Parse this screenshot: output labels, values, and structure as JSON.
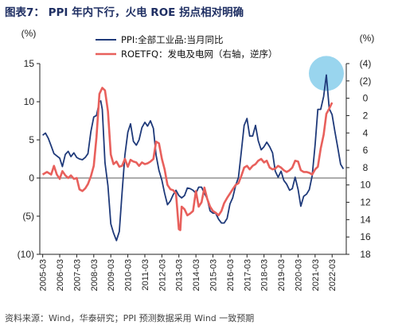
{
  "header": {
    "title": "图表7： PPI 年内下行，火电 ROE 拐点相对明确"
  },
  "footer": {
    "source": "资料来源：Wind，华泰研究；PPI 预测数据采用 Wind 一致预期"
  },
  "chart_data": {
    "type": "line",
    "left_axis": {
      "unit_label": "(%)",
      "ylim": [
        -10,
        15
      ],
      "ticks": [
        15,
        10,
        5,
        0,
        -5,
        -10
      ],
      "tick_labels": [
        "15",
        "10",
        "5",
        "0",
        "(5)",
        "(10)"
      ]
    },
    "right_axis": {
      "unit_label": "(%)",
      "ylim": [
        -4,
        18
      ],
      "inverted": true,
      "ticks": [
        -4,
        -2,
        0,
        2,
        4,
        6,
        8,
        10,
        12,
        14,
        16,
        18
      ],
      "tick_labels": [
        "(4)",
        "(2)",
        "0",
        "2",
        "4",
        "6",
        "8",
        "10",
        "12",
        "14",
        "16",
        "18"
      ]
    },
    "x_axis": {
      "tick_labels": [
        "2005-03",
        "2006-03",
        "2007-03",
        "2008-03",
        "2009-03",
        "2010-03",
        "2011-03",
        "2012-03",
        "2013-03",
        "2014-03",
        "2015-03",
        "2016-03",
        "2017-03",
        "2018-03",
        "2019-03",
        "2020-03",
        "2021-03",
        "2022-03"
      ]
    },
    "highlight": {
      "shape": "circle",
      "color": "#87ceeb",
      "around": "PPI 2021 peak"
    },
    "series": [
      {
        "name": "PPI:全部工业品:当月同比",
        "legend_label": "PPI:全部工业品:当月同比",
        "axis": "left",
        "color": "#1f3a7a",
        "points": [
          [
            2005.17,
            5.6
          ],
          [
            2005.33,
            5.9
          ],
          [
            2005.5,
            5.2
          ],
          [
            2005.67,
            4.2
          ],
          [
            2005.83,
            3.2
          ],
          [
            2006.0,
            2.9
          ],
          [
            2006.17,
            2.6
          ],
          [
            2006.33,
            1.5
          ],
          [
            2006.5,
            3.1
          ],
          [
            2006.67,
            3.5
          ],
          [
            2006.83,
            2.8
          ],
          [
            2007.0,
            3.3
          ],
          [
            2007.17,
            2.7
          ],
          [
            2007.33,
            2.5
          ],
          [
            2007.5,
            2.4
          ],
          [
            2007.67,
            2.7
          ],
          [
            2007.83,
            3.2
          ],
          [
            2008.0,
            6.1
          ],
          [
            2008.17,
            8.0
          ],
          [
            2008.33,
            8.2
          ],
          [
            2008.5,
            10.0
          ],
          [
            2008.58,
            10.1
          ],
          [
            2008.67,
            9.0
          ],
          [
            2008.83,
            2.0
          ],
          [
            2009.0,
            -1.0
          ],
          [
            2009.17,
            -6.0
          ],
          [
            2009.33,
            -7.2
          ],
          [
            2009.5,
            -8.2
          ],
          [
            2009.67,
            -7.0
          ],
          [
            2009.83,
            -2.0
          ],
          [
            2010.0,
            3.0
          ],
          [
            2010.17,
            6.0
          ],
          [
            2010.33,
            7.1
          ],
          [
            2010.5,
            4.8
          ],
          [
            2010.67,
            4.3
          ],
          [
            2010.83,
            5.0
          ],
          [
            2011.0,
            6.6
          ],
          [
            2011.17,
            7.3
          ],
          [
            2011.33,
            6.8
          ],
          [
            2011.5,
            7.5
          ],
          [
            2011.67,
            6.5
          ],
          [
            2011.83,
            3.0
          ],
          [
            2012.0,
            1.0
          ],
          [
            2012.17,
            -0.3
          ],
          [
            2012.33,
            -2.0
          ],
          [
            2012.5,
            -3.5
          ],
          [
            2012.67,
            -3.0
          ],
          [
            2012.83,
            -2.2
          ],
          [
            2013.0,
            -1.6
          ],
          [
            2013.17,
            -2.3
          ],
          [
            2013.33,
            -2.6
          ],
          [
            2013.5,
            -2.3
          ],
          [
            2013.67,
            -1.3
          ],
          [
            2013.83,
            -1.4
          ],
          [
            2014.0,
            -1.6
          ],
          [
            2014.17,
            -2.0
          ],
          [
            2014.33,
            -1.2
          ],
          [
            2014.5,
            -1.2
          ],
          [
            2014.67,
            -2.0
          ],
          [
            2014.83,
            -2.7
          ],
          [
            2015.0,
            -4.3
          ],
          [
            2015.17,
            -4.6
          ],
          [
            2015.33,
            -4.6
          ],
          [
            2015.5,
            -5.4
          ],
          [
            2015.67,
            -5.9
          ],
          [
            2015.83,
            -5.9
          ],
          [
            2016.0,
            -5.3
          ],
          [
            2016.17,
            -3.4
          ],
          [
            2016.33,
            -2.6
          ],
          [
            2016.5,
            -1.0
          ],
          [
            2016.67,
            0.1
          ],
          [
            2016.83,
            3.3
          ],
          [
            2017.0,
            6.9
          ],
          [
            2017.17,
            7.8
          ],
          [
            2017.33,
            5.5
          ],
          [
            2017.5,
            5.5
          ],
          [
            2017.67,
            6.9
          ],
          [
            2017.83,
            4.9
          ],
          [
            2018.0,
            3.7
          ],
          [
            2018.17,
            4.1
          ],
          [
            2018.33,
            4.7
          ],
          [
            2018.5,
            4.1
          ],
          [
            2018.67,
            3.3
          ],
          [
            2018.83,
            0.9
          ],
          [
            2019.0,
            0.1
          ],
          [
            2019.17,
            0.9
          ],
          [
            2019.33,
            -0.3
          ],
          [
            2019.5,
            -0.8
          ],
          [
            2019.67,
            -1.6
          ],
          [
            2019.83,
            -1.4
          ],
          [
            2020.0,
            0.1
          ],
          [
            2020.17,
            -1.5
          ],
          [
            2020.33,
            -3.7
          ],
          [
            2020.5,
            -2.4
          ],
          [
            2020.67,
            -2.1
          ],
          [
            2020.83,
            -1.5
          ],
          [
            2021.0,
            0.3
          ],
          [
            2021.17,
            4.4
          ],
          [
            2021.33,
            9.0
          ],
          [
            2021.5,
            9.0
          ],
          [
            2021.67,
            10.7
          ],
          [
            2021.83,
            13.5
          ],
          [
            2022.0,
            9.1
          ],
          [
            2022.17,
            8.3
          ],
          [
            2022.33,
            6.1
          ],
          [
            2022.5,
            4.0
          ],
          [
            2022.67,
            1.8
          ],
          [
            2022.83,
            1.2
          ]
        ]
      },
      {
        "name": "ROETFQ：发电及电网（右轴，逆序）",
        "legend_label": "ROETFQ：发电及电网（右轴，逆序）",
        "axis": "right",
        "color": "#e8605c",
        "points": [
          [
            2005.17,
            8.8
          ],
          [
            2005.42,
            8.5
          ],
          [
            2005.67,
            8.8
          ],
          [
            2005.83,
            7.8
          ],
          [
            2006.0,
            8.8
          ],
          [
            2006.17,
            9.3
          ],
          [
            2006.33,
            8.4
          ],
          [
            2006.5,
            8.9
          ],
          [
            2006.67,
            9.2
          ],
          [
            2006.83,
            8.9
          ],
          [
            2007.0,
            9.3
          ],
          [
            2007.17,
            9.2
          ],
          [
            2007.33,
            10.5
          ],
          [
            2007.5,
            10.7
          ],
          [
            2007.67,
            10.4
          ],
          [
            2007.83,
            9.9
          ],
          [
            2008.0,
            9.0
          ],
          [
            2008.17,
            7.8
          ],
          [
            2008.33,
            4.5
          ],
          [
            2008.5,
            -0.5
          ],
          [
            2008.67,
            -1.2
          ],
          [
            2008.83,
            -0.9
          ],
          [
            2009.0,
            1.5
          ],
          [
            2009.17,
            6.5
          ],
          [
            2009.33,
            7.6
          ],
          [
            2009.5,
            7.3
          ],
          [
            2009.67,
            7.9
          ],
          [
            2009.83,
            7.8
          ],
          [
            2010.0,
            7.0
          ],
          [
            2010.17,
            7.9
          ],
          [
            2010.33,
            7.1
          ],
          [
            2010.5,
            7.3
          ],
          [
            2010.67,
            7.4
          ],
          [
            2010.83,
            7.8
          ],
          [
            2011.0,
            7.4
          ],
          [
            2011.17,
            7.6
          ],
          [
            2011.33,
            7.5
          ],
          [
            2011.5,
            7.3
          ],
          [
            2011.67,
            7.0
          ],
          [
            2011.83,
            5.0
          ],
          [
            2012.0,
            5.2
          ],
          [
            2012.17,
            7.0
          ],
          [
            2012.33,
            8.2
          ],
          [
            2012.5,
            10.0
          ],
          [
            2012.67,
            10.5
          ],
          [
            2012.83,
            10.6
          ],
          [
            2013.0,
            11.0
          ],
          [
            2013.17,
            15.1
          ],
          [
            2013.25,
            15.2
          ],
          [
            2013.33,
            12.5
          ],
          [
            2013.5,
            12.8
          ],
          [
            2013.67,
            13.5
          ],
          [
            2013.83,
            13.3
          ],
          [
            2014.0,
            13.0
          ],
          [
            2014.17,
            10.7
          ],
          [
            2014.33,
            12.5
          ],
          [
            2014.5,
            12.0
          ],
          [
            2014.67,
            10.3
          ],
          [
            2014.83,
            11.6
          ],
          [
            2015.0,
            12.5
          ],
          [
            2015.17,
            13.0
          ],
          [
            2015.33,
            13.2
          ],
          [
            2015.5,
            13.5
          ],
          [
            2015.67,
            13.0
          ],
          [
            2015.83,
            12.1
          ],
          [
            2016.0,
            11.5
          ],
          [
            2016.17,
            11.0
          ],
          [
            2016.33,
            10.5
          ],
          [
            2016.5,
            10.0
          ],
          [
            2016.67,
            9.8
          ],
          [
            2016.83,
            9.0
          ],
          [
            2017.0,
            8.0
          ],
          [
            2017.17,
            7.8
          ],
          [
            2017.33,
            8.2
          ],
          [
            2017.5,
            7.8
          ],
          [
            2017.67,
            7.6
          ],
          [
            2017.83,
            7.2
          ],
          [
            2018.0,
            7.0
          ],
          [
            2018.17,
            7.4
          ],
          [
            2018.33,
            7.2
          ],
          [
            2018.5,
            8.0
          ],
          [
            2018.67,
            8.2
          ],
          [
            2018.83,
            8.1
          ],
          [
            2019.0,
            7.8
          ],
          [
            2019.17,
            8.0
          ],
          [
            2019.33,
            8.3
          ],
          [
            2019.5,
            8.5
          ],
          [
            2019.67,
            8.3
          ],
          [
            2019.83,
            8.0
          ],
          [
            2020.0,
            7.2
          ],
          [
            2020.17,
            7.3
          ],
          [
            2020.33,
            8.3
          ],
          [
            2020.5,
            8.5
          ],
          [
            2020.67,
            8.5
          ],
          [
            2020.83,
            8.6
          ],
          [
            2021.0,
            8.8
          ],
          [
            2021.17,
            8.2
          ],
          [
            2021.33,
            7.9
          ],
          [
            2021.5,
            5.8
          ],
          [
            2021.67,
            4.2
          ],
          [
            2021.83,
            1.8
          ],
          [
            2022.0,
            1.2
          ],
          [
            2022.17,
            0.5
          ]
        ]
      }
    ]
  }
}
